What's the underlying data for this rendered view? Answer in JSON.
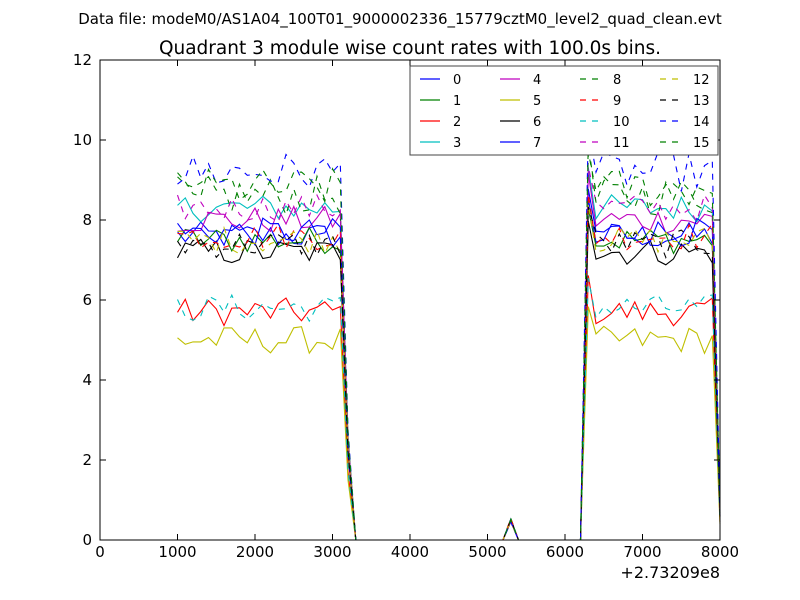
{
  "chart_data": {
    "type": "line",
    "suptitle": "Data file: modeM0/AS1A04_100T01_9000002336_15779cztM0_level2_quad_clean.evt",
    "title": "Quadrant 3 module wise count rates with 100.0s bins.",
    "xlabel": "",
    "ylabel": "",
    "x_offset_label": "+2.73209e8",
    "xlim": [
      0,
      8000
    ],
    "ylim": [
      0,
      12
    ],
    "xticks": [
      0,
      1000,
      2000,
      3000,
      4000,
      5000,
      6000,
      7000,
      8000
    ],
    "yticks": [
      0,
      2,
      4,
      6,
      8,
      10,
      12
    ],
    "x_tick_labels": [
      "0",
      "1000",
      "2000",
      "3000",
      "4000",
      "5000",
      "6000",
      "7000",
      "8000"
    ],
    "y_tick_labels": [
      "0",
      "2",
      "4",
      "6",
      "8",
      "10",
      "12"
    ],
    "legend_position": "top-right",
    "legend_columns": 4,
    "segments": {
      "seg1_start": 1000,
      "seg1_end": 3100,
      "drop_end": 3300,
      "spike_x": 5300,
      "seg2_start": 6200,
      "seg2_peak": 6300,
      "seg2_end": 7900,
      "end_x": 8000,
      "step": 100
    },
    "series": [
      {
        "name": "0",
        "color": "#0000ff",
        "dash": "solid",
        "level": 7.6
      },
      {
        "name": "1",
        "color": "#008000",
        "dash": "solid",
        "level": 7.5
      },
      {
        "name": "2",
        "color": "#ff0000",
        "dash": "solid",
        "level": 5.7
      },
      {
        "name": "3",
        "color": "#00bfbf",
        "dash": "solid",
        "level": 8.3
      },
      {
        "name": "4",
        "color": "#bf00bf",
        "dash": "solid",
        "level": 8.0
      },
      {
        "name": "5",
        "color": "#bfbf00",
        "dash": "solid",
        "level": 5.0
      },
      {
        "name": "6",
        "color": "#000000",
        "dash": "solid",
        "level": 7.2
      },
      {
        "name": "7",
        "color": "#0000ff",
        "dash": "solid",
        "level": 7.7
      },
      {
        "name": "8",
        "color": "#008000",
        "dash": "dashed",
        "level": 8.6
      },
      {
        "name": "9",
        "color": "#ff0000",
        "dash": "dashed",
        "level": 7.6
      },
      {
        "name": "10",
        "color": "#00bfbf",
        "dash": "dashed",
        "level": 5.8
      },
      {
        "name": "11",
        "color": "#bf00bf",
        "dash": "dashed",
        "level": 8.3
      },
      {
        "name": "12",
        "color": "#bfbf00",
        "dash": "dashed",
        "level": 7.5
      },
      {
        "name": "13",
        "color": "#000000",
        "dash": "dashed",
        "level": 7.4
      },
      {
        "name": "14",
        "color": "#0000ff",
        "dash": "dashed",
        "level": 9.2
      },
      {
        "name": "15",
        "color": "#008000",
        "dash": "dashed",
        "level": 8.8
      }
    ]
  }
}
